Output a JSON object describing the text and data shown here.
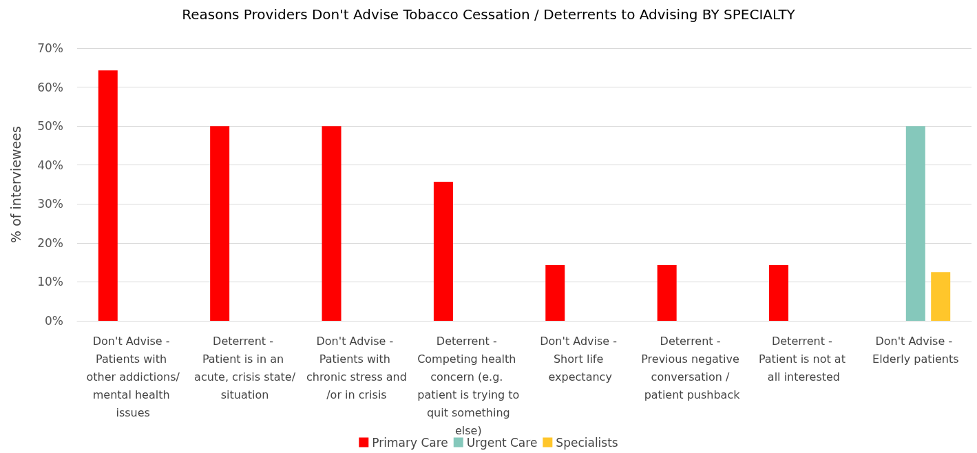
{
  "chart_data": {
    "type": "bar",
    "title": "Reasons Providers Don't Advise Tobacco Cessation / Deterrents to Advising BY SPECIALTY",
    "ylabel": "% of interviewees",
    "categories": [
      "Don't Advise - Patients with other addictions/mental health issues",
      "Deterrent - Patient is in an acute, crisis state/situation",
      "Don't Advise - Patients with chronic stress and/or in crisis",
      "Deterrent - Competing health concern (e.g. patient is trying to quit something else)",
      "Don't Advise - Short life expectancy",
      "Deterrent - Previous negative conversation / patient pushback",
      "Deterrent - Patient is not at all interested",
      "Don't Advise - Elderly patients"
    ],
    "series": [
      {
        "name": "Primary Care",
        "color": "#ff0000",
        "values": [
          64.3,
          50,
          50,
          35.7,
          14.3,
          14.3,
          14.3,
          null
        ]
      },
      {
        "name": "Urgent Care",
        "color": "#85c8bb",
        "values": [
          null,
          null,
          null,
          null,
          null,
          null,
          null,
          50
        ]
      },
      {
        "name": "Specialists",
        "color": "#ffc62b",
        "values": [
          null,
          null,
          null,
          null,
          null,
          null,
          null,
          12.5
        ]
      }
    ],
    "ylim": [
      0,
      70
    ],
    "yticks": [
      {
        "value": 0,
        "label": "0%"
      },
      {
        "value": 10,
        "label": "10%"
      },
      {
        "value": 20,
        "label": "20%"
      },
      {
        "value": 30,
        "label": "30%"
      },
      {
        "value": 40,
        "label": "40%"
      },
      {
        "value": 50,
        "label": "50%"
      },
      {
        "value": 60,
        "label": "60%"
      },
      {
        "value": 70,
        "label": "70%"
      }
    ],
    "grid": "y",
    "legend": "bottom"
  }
}
